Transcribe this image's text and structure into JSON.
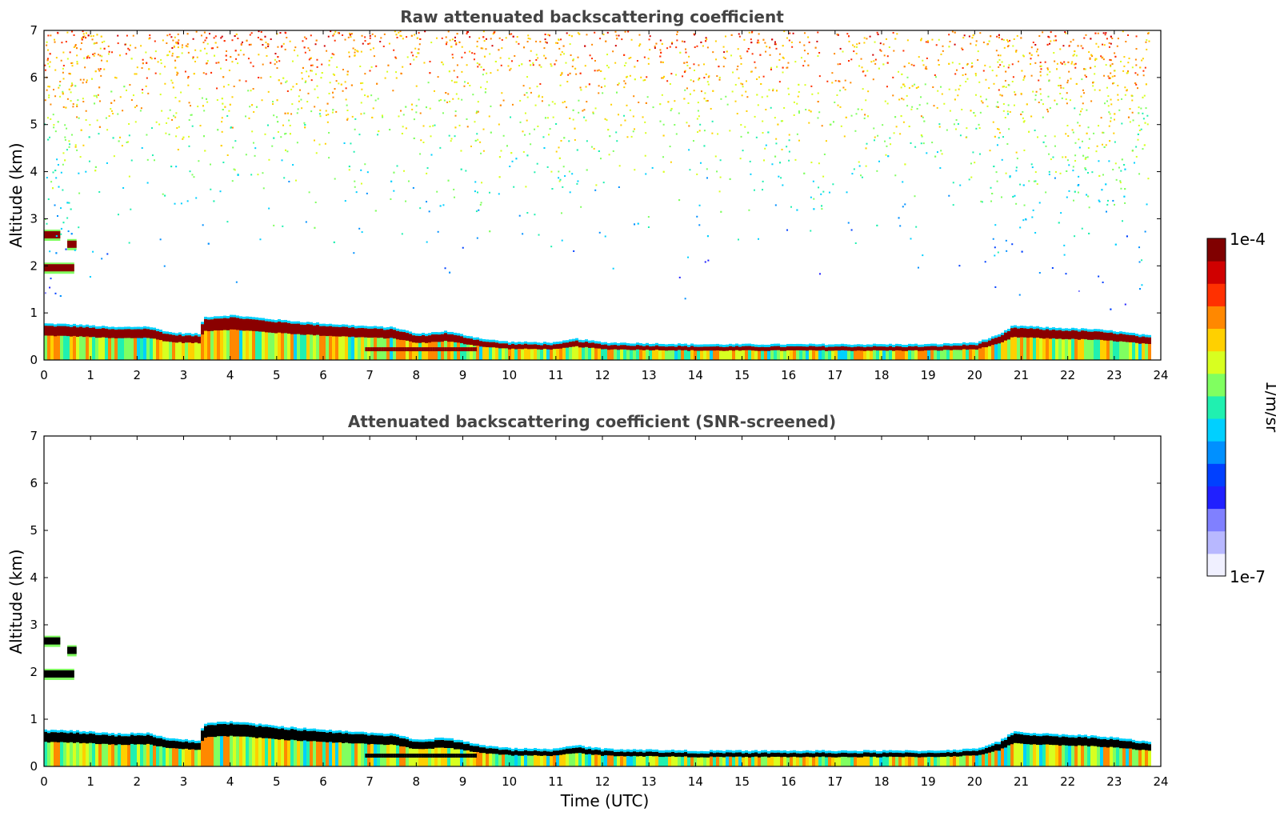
{
  "chart_data": [
    {
      "type": "heatmap",
      "title": "Raw attenuated backscattering coefficient",
      "xlabel": "",
      "ylabel": "Altitude (km)",
      "xlim": [
        0,
        24
      ],
      "ylim": [
        0,
        7
      ],
      "xticks": [
        "0",
        "1",
        "2",
        "3",
        "4",
        "5",
        "6",
        "7",
        "8",
        "9",
        "10",
        "11",
        "12",
        "13",
        "14",
        "15",
        "16",
        "17",
        "18",
        "19",
        "20",
        "21",
        "22",
        "23",
        "24"
      ],
      "yticks": [
        "0",
        "1",
        "2",
        "3",
        "4",
        "5",
        "6",
        "7"
      ],
      "noise": "strong",
      "layer_top_km": [
        [
          0.0,
          0.74
        ],
        [
          0.7,
          0.72
        ],
        [
          1.5,
          0.66
        ],
        [
          2.2,
          0.68
        ],
        [
          2.7,
          0.55
        ],
        [
          3.3,
          0.52
        ],
        [
          3.4,
          0.88
        ],
        [
          4.0,
          0.92
        ],
        [
          5.0,
          0.82
        ],
        [
          6.0,
          0.74
        ],
        [
          7.0,
          0.68
        ],
        [
          7.5,
          0.66
        ],
        [
          8.0,
          0.52
        ],
        [
          8.6,
          0.58
        ],
        [
          9.0,
          0.5
        ],
        [
          9.5,
          0.4
        ],
        [
          10.0,
          0.35
        ],
        [
          11.0,
          0.34
        ],
        [
          11.4,
          0.42
        ],
        [
          12.0,
          0.34
        ],
        [
          13.0,
          0.32
        ],
        [
          14.0,
          0.3
        ],
        [
          15.0,
          0.3
        ],
        [
          16.0,
          0.3
        ],
        [
          17.0,
          0.3
        ],
        [
          18.0,
          0.3
        ],
        [
          19.0,
          0.3
        ],
        [
          20.0,
          0.34
        ],
        [
          20.5,
          0.5
        ],
        [
          20.8,
          0.7
        ],
        [
          21.5,
          0.66
        ],
        [
          22.5,
          0.62
        ],
        [
          23.0,
          0.58
        ],
        [
          23.75,
          0.48
        ]
      ],
      "clouds": [
        {
          "t_start": 0.0,
          "t_end": 0.35,
          "alt_km": 2.65
        },
        {
          "t_start": 0.5,
          "t_end": 0.7,
          "alt_km": 2.45
        },
        {
          "t_start": 0.0,
          "t_end": 0.65,
          "alt_km": 1.95
        }
      ],
      "secondary_layer": {
        "t_start": 6.9,
        "t_end": 9.3,
        "alt_km": 0.22
      }
    },
    {
      "type": "heatmap",
      "title": "Attenuated backscattering coefficient (SNR-screened)",
      "xlabel": "Time (UTC)",
      "ylabel": "Altitude (km)",
      "xlim": [
        0,
        24
      ],
      "ylim": [
        0,
        7
      ],
      "xticks": [
        "0",
        "1",
        "2",
        "3",
        "4",
        "5",
        "6",
        "7",
        "8",
        "9",
        "10",
        "11",
        "12",
        "13",
        "14",
        "15",
        "16",
        "17",
        "18",
        "19",
        "20",
        "21",
        "22",
        "23",
        "24"
      ],
      "yticks": [
        "0",
        "1",
        "2",
        "3",
        "4",
        "5",
        "6",
        "7"
      ],
      "noise": "none",
      "layer_top_km": [
        [
          0.0,
          0.74
        ],
        [
          0.7,
          0.72
        ],
        [
          1.5,
          0.66
        ],
        [
          2.2,
          0.68
        ],
        [
          2.7,
          0.55
        ],
        [
          3.3,
          0.52
        ],
        [
          3.4,
          0.88
        ],
        [
          4.0,
          0.92
        ],
        [
          5.0,
          0.82
        ],
        [
          6.0,
          0.74
        ],
        [
          7.0,
          0.68
        ],
        [
          7.5,
          0.66
        ],
        [
          8.0,
          0.52
        ],
        [
          8.6,
          0.58
        ],
        [
          9.0,
          0.5
        ],
        [
          9.5,
          0.4
        ],
        [
          10.0,
          0.35
        ],
        [
          11.0,
          0.34
        ],
        [
          11.4,
          0.42
        ],
        [
          12.0,
          0.34
        ],
        [
          13.0,
          0.32
        ],
        [
          14.0,
          0.3
        ],
        [
          15.0,
          0.3
        ],
        [
          16.0,
          0.3
        ],
        [
          17.0,
          0.3
        ],
        [
          18.0,
          0.3
        ],
        [
          19.0,
          0.3
        ],
        [
          20.0,
          0.34
        ],
        [
          20.5,
          0.5
        ],
        [
          20.8,
          0.7
        ],
        [
          21.5,
          0.66
        ],
        [
          22.5,
          0.62
        ],
        [
          23.0,
          0.58
        ],
        [
          23.75,
          0.48
        ]
      ],
      "clouds": [
        {
          "t_start": 0.0,
          "t_end": 0.35,
          "alt_km": 2.65
        },
        {
          "t_start": 0.5,
          "t_end": 0.7,
          "alt_km": 2.45
        },
        {
          "t_start": 0.0,
          "t_end": 0.65,
          "alt_km": 1.95
        }
      ],
      "secondary_layer": {
        "t_start": 6.9,
        "t_end": 9.3,
        "alt_km": 0.22
      }
    }
  ],
  "colorbar": {
    "max_label": "1e-4",
    "min_label": "1e-7",
    "unit_label": "1/m/sr",
    "colors": [
      "#f0f0ff",
      "#b8b8ff",
      "#8080ff",
      "#2020ff",
      "#0040ff",
      "#0090ff",
      "#00d0ff",
      "#20f0b0",
      "#80ff60",
      "#d8ff20",
      "#ffd000",
      "#ff8800",
      "#ff3000",
      "#d00000",
      "#800000"
    ]
  }
}
